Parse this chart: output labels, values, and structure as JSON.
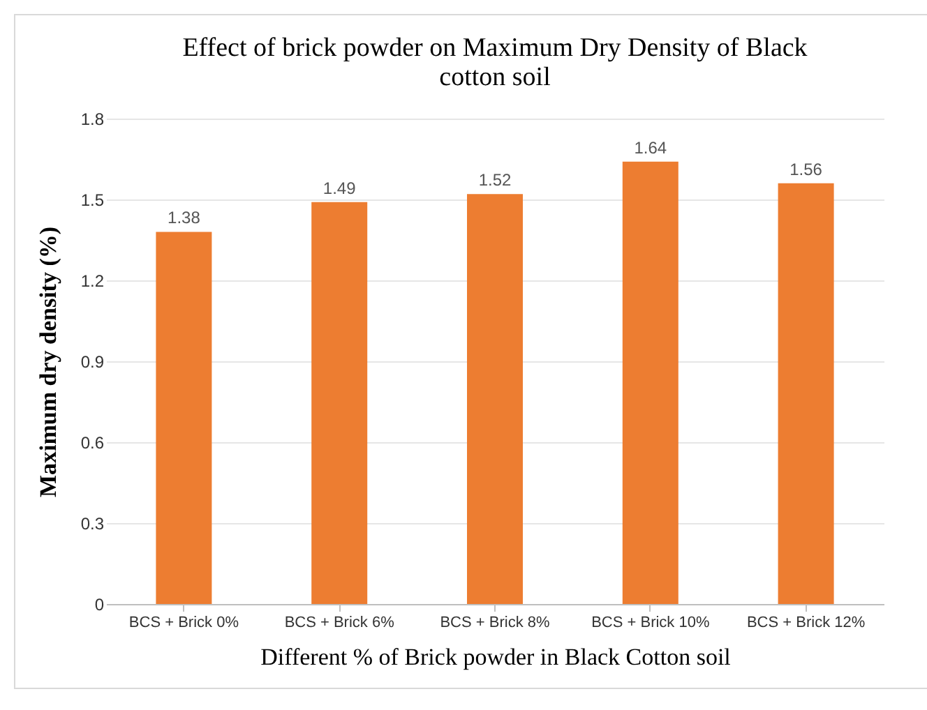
{
  "chart_data": {
    "type": "bar",
    "title": "Effect of brick powder on Maximum Dry Density of Black cotton soil",
    "xlabel": "Different % of Brick powder in Black Cotton soil",
    "ylabel": "Maximum dry density (%)",
    "categories": [
      "BCS + Brick 0%",
      "BCS + Brick 6%",
      "BCS + Brick 8%",
      "BCS + Brick 10%",
      "BCS + Brick 12%"
    ],
    "values": [
      1.38,
      1.49,
      1.52,
      1.64,
      1.56
    ],
    "color": "#ed7d31",
    "ylim": [
      0,
      1.8
    ],
    "yticks": [
      0,
      0.3,
      0.6,
      0.9,
      1.2,
      1.5,
      1.8
    ],
    "grid": "y",
    "data_labels": true
  }
}
